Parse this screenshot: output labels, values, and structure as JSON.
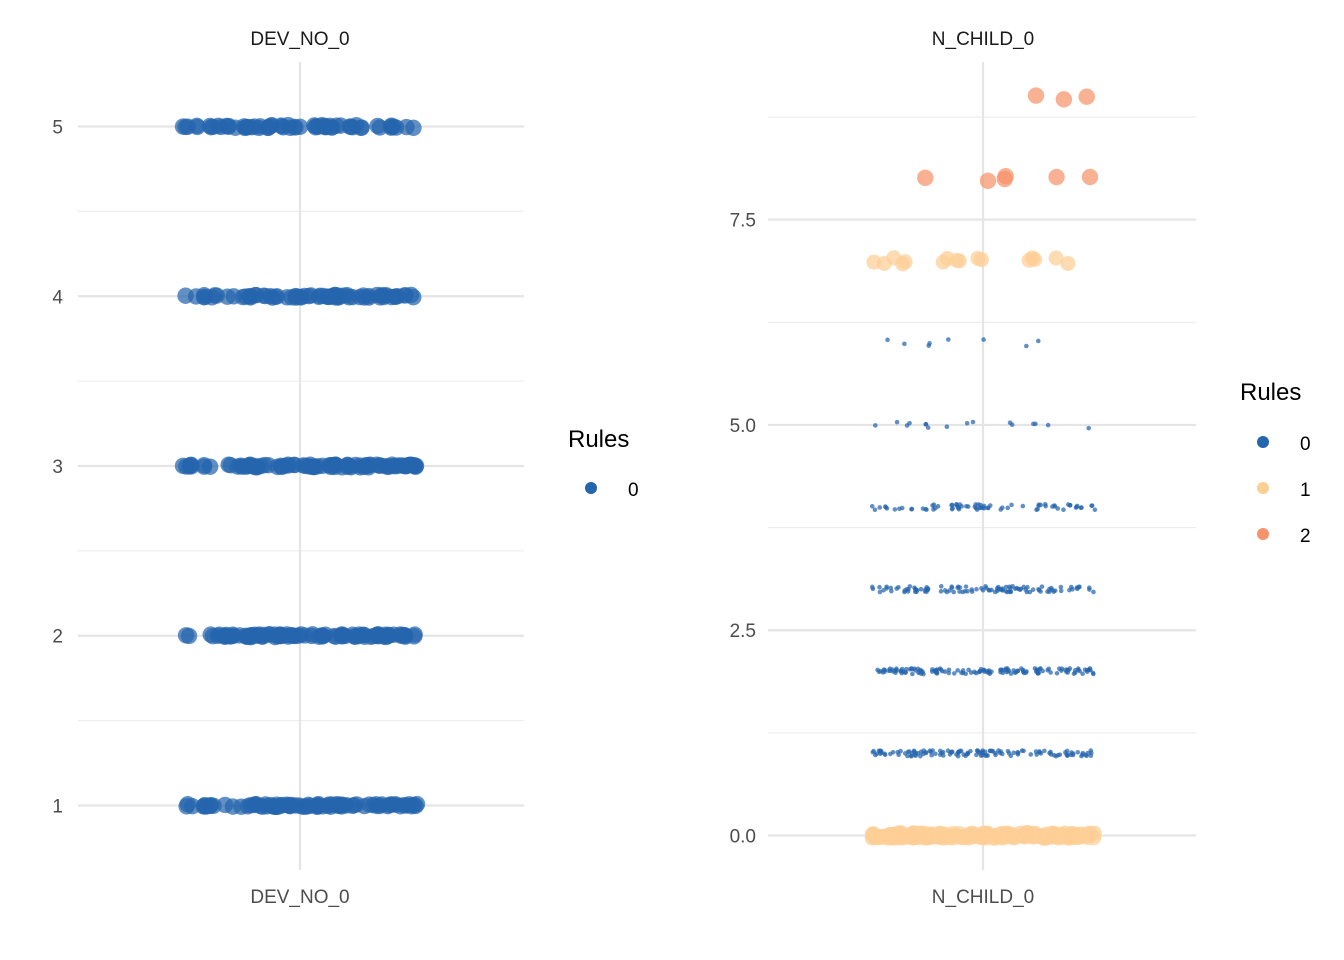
{
  "chart_data": [
    {
      "type": "scatter",
      "title": "DEV_NO_0",
      "xlabel": "DEV_NO_0",
      "ylabel": "",
      "ylim": [
        0.62,
        5.38
      ],
      "yticks": [
        1,
        2,
        3,
        4,
        5
      ],
      "ytick_labels": [
        "1",
        "2",
        "3",
        "4",
        "5"
      ],
      "grid": true,
      "legend": {
        "title": "Rules",
        "placement": "right",
        "entries": [
          {
            "label": "0",
            "color": "#2565ad"
          }
        ]
      },
      "series": [
        {
          "name": "0",
          "color": "#2565ad",
          "size": "large",
          "groups": [
            {
              "y": 1,
              "count": 85
            },
            {
              "y": 2,
              "count": 95
            },
            {
              "y": 3,
              "count": 90
            },
            {
              "y": 4,
              "count": 70
            },
            {
              "y": 5,
              "count": 65
            }
          ]
        }
      ]
    },
    {
      "type": "scatter",
      "title": "N_CHILD_0",
      "xlabel": "N_CHILD_0",
      "ylabel": "",
      "ylim": [
        -0.42,
        9.42
      ],
      "yticks": [
        0.0,
        2.5,
        5.0,
        7.5
      ],
      "ytick_labels": [
        "0.0",
        "2.5",
        "5.0",
        "7.5"
      ],
      "grid": true,
      "legend": {
        "title": "Rules",
        "placement": "right",
        "entries": [
          {
            "label": "0",
            "color": "#2565ad"
          },
          {
            "label": "1",
            "color": "#fdcf95"
          },
          {
            "label": "2",
            "color": "#f7936a"
          }
        ]
      },
      "series": [
        {
          "name": "0",
          "color": "#2565ad",
          "size": "small",
          "groups": [
            {
              "y": 1,
              "count": 130
            },
            {
              "y": 2,
              "count": 140
            },
            {
              "y": 3,
              "count": 110
            },
            {
              "y": 4,
              "count": 75
            },
            {
              "y": 5,
              "count": 16
            },
            {
              "y": 6,
              "count": 8
            }
          ]
        },
        {
          "name": "1",
          "color": "#fdcf95",
          "size": "medium",
          "groups": [
            {
              "y": 0,
              "count": 220
            },
            {
              "y": 7,
              "count": 16
            }
          ]
        },
        {
          "name": "2",
          "color": "#f7936a",
          "size": "large",
          "groups": [
            {
              "y": 8,
              "count": 6
            },
            {
              "y": 9,
              "count": 3
            }
          ]
        }
      ]
    }
  ]
}
